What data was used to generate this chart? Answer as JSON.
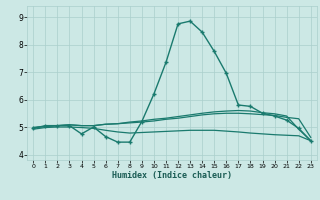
{
  "title": "",
  "xlabel": "Humidex (Indice chaleur)",
  "xlim": [
    -0.5,
    23.5
  ],
  "ylim": [
    3.8,
    9.4
  ],
  "yticks": [
    4,
    5,
    6,
    7,
    8,
    9
  ],
  "xticks": [
    0,
    1,
    2,
    3,
    4,
    5,
    6,
    7,
    8,
    9,
    10,
    11,
    12,
    13,
    14,
    15,
    16,
    17,
    18,
    19,
    20,
    21,
    22,
    23
  ],
  "bg_color": "#cce8e5",
  "line_color": "#1a7a6e",
  "grid_color": "#aacfcc",
  "lines": [
    {
      "x": [
        0,
        1,
        2,
        3,
        4,
        5,
        6,
        7,
        8,
        9,
        10,
        11,
        12,
        13,
        14,
        15,
        16,
        17,
        18,
        19,
        20,
        21,
        22,
        23
      ],
      "y": [
        4.95,
        5.05,
        5.05,
        5.05,
        4.75,
        5.0,
        4.65,
        4.45,
        4.45,
        5.2,
        6.2,
        7.35,
        8.75,
        8.85,
        8.45,
        7.75,
        6.95,
        5.8,
        5.75,
        5.5,
        5.4,
        5.25,
        4.95,
        4.5
      ],
      "marker": "+",
      "markersize": 3.5,
      "linewidth": 1.0,
      "has_marker": true
    },
    {
      "x": [
        0,
        1,
        2,
        3,
        4,
        5,
        6,
        7,
        8,
        9,
        10,
        11,
        12,
        13,
        14,
        15,
        16,
        17,
        18,
        19,
        20,
        21,
        22,
        23
      ],
      "y": [
        4.98,
        5.02,
        5.05,
        5.08,
        5.05,
        5.05,
        5.1,
        5.12,
        5.15,
        5.18,
        5.22,
        5.28,
        5.32,
        5.38,
        5.44,
        5.48,
        5.5,
        5.5,
        5.48,
        5.45,
        5.42,
        5.35,
        5.3,
        4.62
      ],
      "marker": null,
      "markersize": 0,
      "linewidth": 0.9,
      "has_marker": false
    },
    {
      "x": [
        0,
        1,
        2,
        3,
        4,
        5,
        6,
        7,
        8,
        9,
        10,
        11,
        12,
        13,
        14,
        15,
        16,
        17,
        18,
        19,
        20,
        21,
        22,
        23
      ],
      "y": [
        4.98,
        5.02,
        5.05,
        5.08,
        5.05,
        5.05,
        5.1,
        5.12,
        5.18,
        5.22,
        5.28,
        5.32,
        5.38,
        5.44,
        5.5,
        5.55,
        5.58,
        5.6,
        5.58,
        5.52,
        5.48,
        5.4,
        4.92,
        4.5
      ],
      "marker": null,
      "markersize": 0,
      "linewidth": 0.9,
      "has_marker": false
    },
    {
      "x": [
        0,
        1,
        2,
        3,
        4,
        5,
        6,
        7,
        8,
        9,
        10,
        11,
        12,
        13,
        14,
        15,
        16,
        17,
        18,
        19,
        20,
        21,
        22,
        23
      ],
      "y": [
        4.92,
        4.98,
        5.0,
        5.0,
        4.98,
        4.95,
        4.88,
        4.82,
        4.78,
        4.8,
        4.82,
        4.84,
        4.86,
        4.88,
        4.88,
        4.88,
        4.85,
        4.82,
        4.78,
        4.75,
        4.72,
        4.7,
        4.68,
        4.5
      ],
      "marker": null,
      "markersize": 0,
      "linewidth": 0.9,
      "has_marker": false
    }
  ]
}
